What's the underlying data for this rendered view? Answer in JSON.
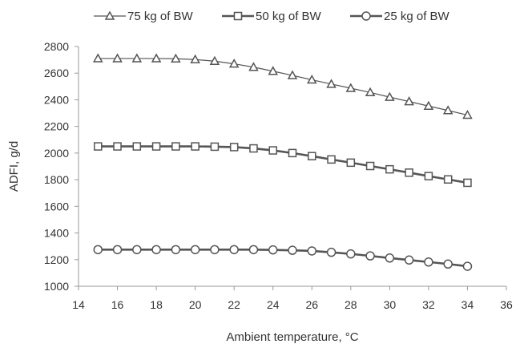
{
  "chart_data": {
    "type": "line",
    "title": "",
    "xlabel": "Ambient temperature, °C",
    "ylabel": "ADFI, g/d",
    "xlim": [
      14,
      36
    ],
    "ylim": [
      1000,
      2800
    ],
    "x_ticks": [
      14,
      16,
      18,
      20,
      22,
      24,
      26,
      28,
      30,
      32,
      34,
      36
    ],
    "y_ticks": [
      1000,
      1200,
      1400,
      1600,
      1800,
      2000,
      2200,
      2400,
      2600,
      2800
    ],
    "grid": false,
    "legend_position": "top",
    "x": [
      15,
      16,
      17,
      18,
      19,
      20,
      21,
      22,
      23,
      24,
      25,
      26,
      27,
      28,
      29,
      30,
      31,
      32,
      33,
      34
    ],
    "series": [
      {
        "name": "75 kg of BW",
        "marker": "triangle",
        "color": "#555555",
        "values": [
          2710,
          2710,
          2710,
          2710,
          2708,
          2702,
          2690,
          2670,
          2645,
          2615,
          2583,
          2550,
          2518,
          2487,
          2455,
          2420,
          2387,
          2353,
          2320,
          2285
        ]
      },
      {
        "name": "50 kg of BW",
        "marker": "square",
        "color": "#555555",
        "values": [
          2050,
          2050,
          2050,
          2050,
          2050,
          2050,
          2048,
          2045,
          2035,
          2020,
          2000,
          1977,
          1952,
          1928,
          1903,
          1878,
          1853,
          1827,
          1802,
          1777
        ]
      },
      {
        "name": "25 kg of BW",
        "marker": "circle",
        "color": "#555555",
        "values": [
          1275,
          1275,
          1275,
          1275,
          1275,
          1275,
          1275,
          1275,
          1275,
          1273,
          1270,
          1265,
          1255,
          1243,
          1228,
          1212,
          1197,
          1182,
          1167,
          1150
        ]
      }
    ]
  }
}
